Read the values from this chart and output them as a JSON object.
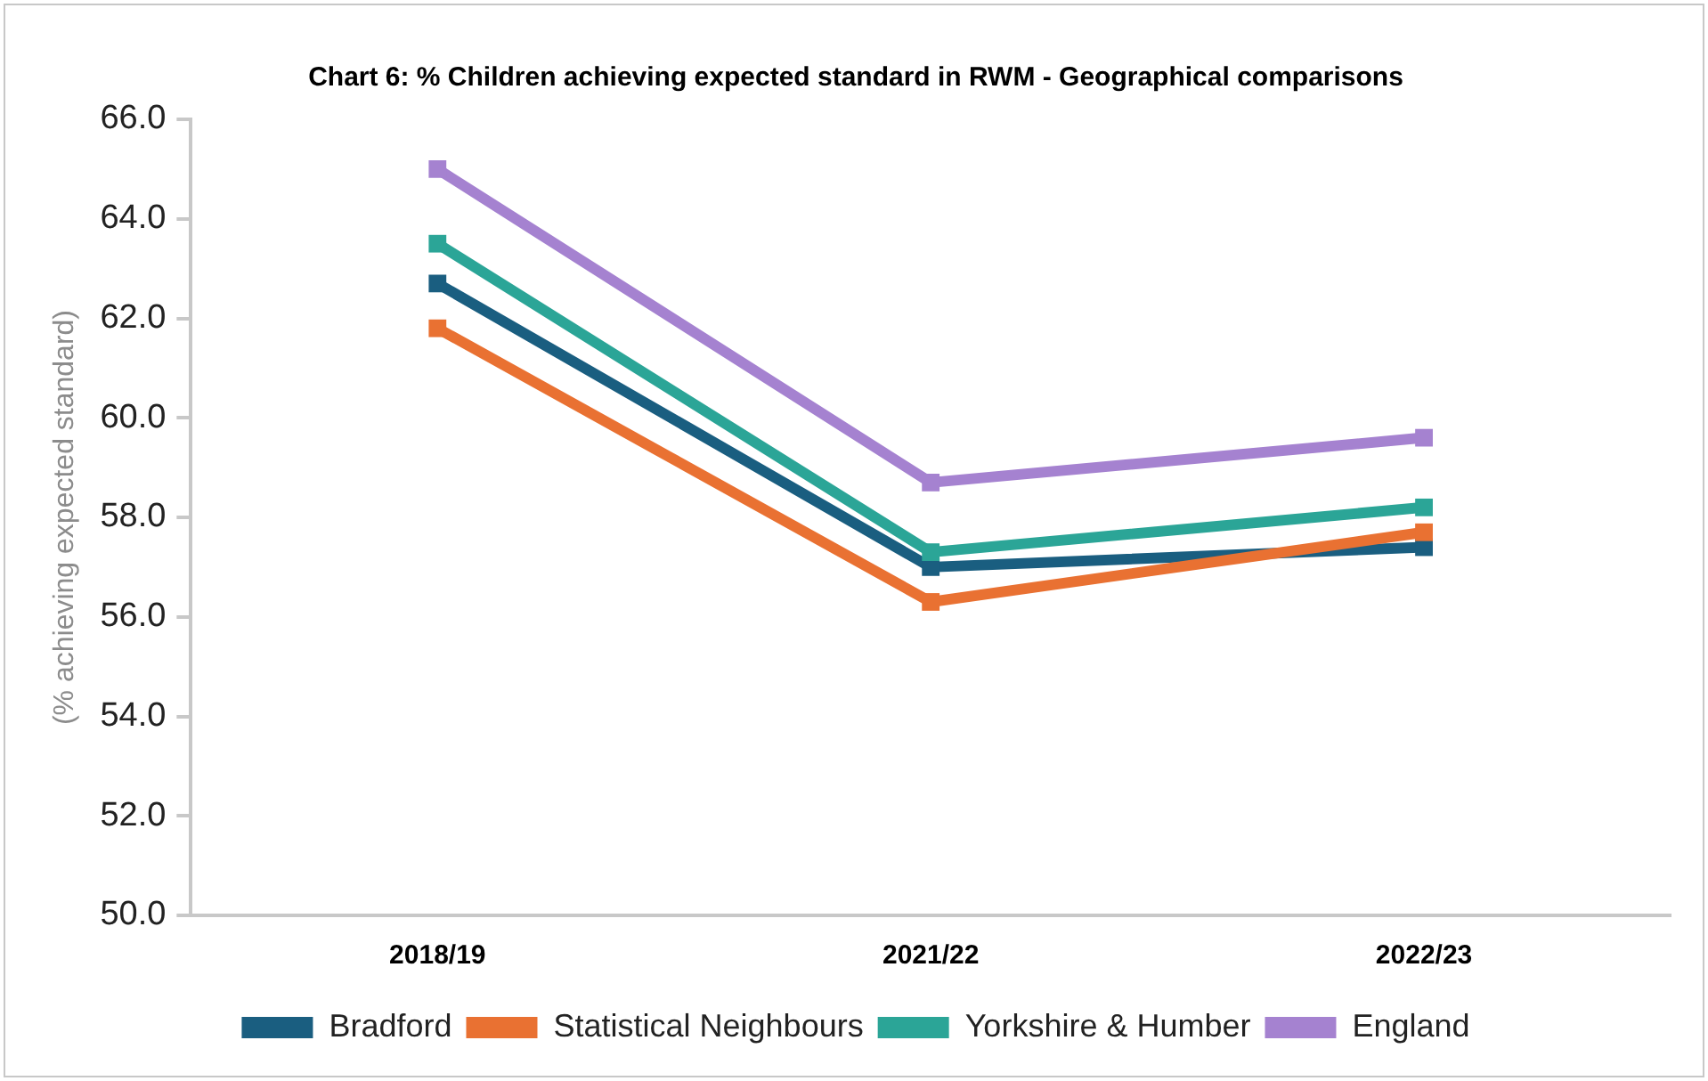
{
  "chart_data": {
    "type": "line",
    "title": "Chart 6: % Children achieving expected standard in RWM - Geographical comparisons",
    "ylabel": "(% achieving expected standard)",
    "categories": [
      "2018/19",
      "2021/22",
      "2022/23"
    ],
    "series": [
      {
        "name": "Bradford",
        "color": "#1a5e80",
        "values": [
          62.7,
          57.0,
          57.4
        ]
      },
      {
        "name": "Statistical Neighbours",
        "color": "#e97132",
        "values": [
          61.8,
          56.3,
          57.7
        ]
      },
      {
        "name": "Yorkshire & Humber",
        "color": "#2ba597",
        "values": [
          63.5,
          57.3,
          58.2
        ]
      },
      {
        "name": "England",
        "color": "#a582d0",
        "values": [
          65.0,
          58.7,
          59.6
        ]
      }
    ],
    "ylim": [
      50,
      66
    ],
    "yticks": [
      {
        "value": 50,
        "label": "50.0"
      },
      {
        "value": 52,
        "label": "52.0"
      },
      {
        "value": 54,
        "label": "54.0"
      },
      {
        "value": 56,
        "label": "56.0"
      },
      {
        "value": 58,
        "label": "58.0"
      },
      {
        "value": 60,
        "label": "60.0"
      },
      {
        "value": 62,
        "label": "62.0"
      },
      {
        "value": 64,
        "label": "64.0"
      },
      {
        "value": 66,
        "label": "66.0"
      }
    ],
    "grid": false,
    "legend": "bottom",
    "marker": "square",
    "line_style": "solid"
  }
}
